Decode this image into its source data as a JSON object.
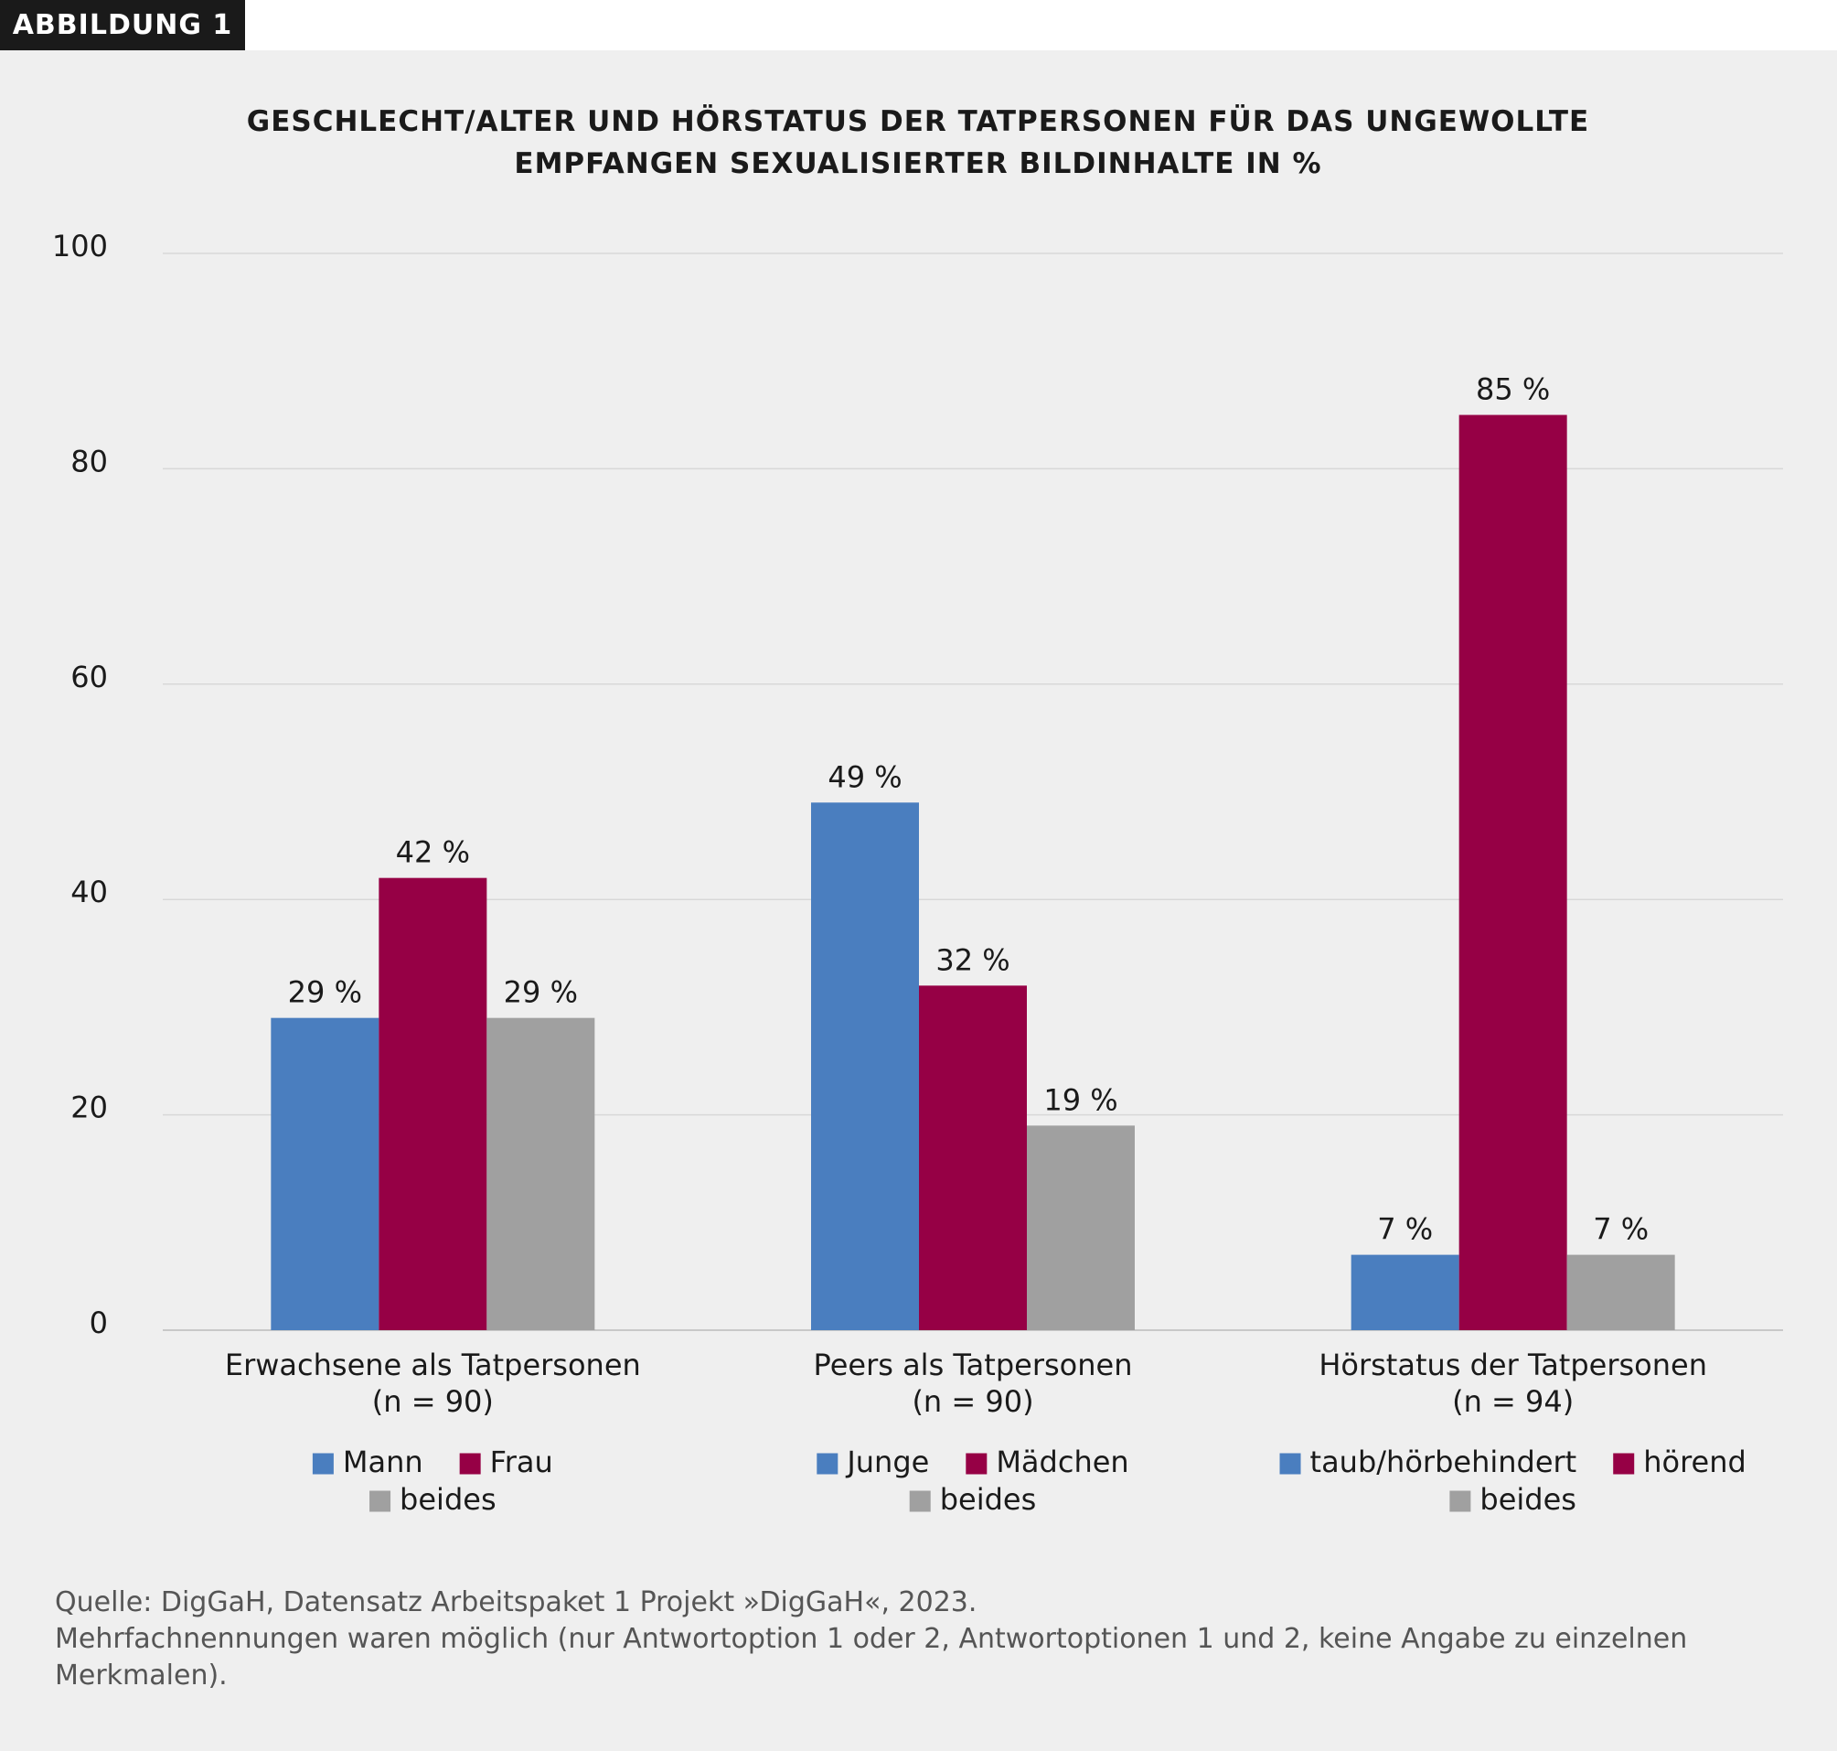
{
  "chart_data": {
    "type": "bar",
    "label": "ABBILDUNG 1",
    "title": "GESCHLECHT/ALTER UND HÖRSTATUS DER TATPERSONEN FÜR DAS UNGEWOLLTE EMPFANGEN SEXUALISIERTER BILDINHALTE IN %",
    "categories": [
      "Erwachsene als Tatpersonen",
      "Peers als Tatpersonen",
      "Hörstatus der Tatpersonen"
    ],
    "category_notes": [
      "(n = 90)",
      "(n = 90)",
      "(n = 94)"
    ],
    "series": [
      {
        "names": [
          "Mann",
          "Junge",
          "taub/hörbehindert"
        ],
        "color": "#4a7ebf",
        "values": [
          29,
          49,
          7
        ],
        "value_labels": [
          "29 %",
          "49 %",
          "7 %"
        ]
      },
      {
        "names": [
          "Frau",
          "Mädchen",
          "hörend"
        ],
        "color": "#960045",
        "values": [
          42,
          32,
          85
        ],
        "value_labels": [
          "42 %",
          "32 %",
          "85 %"
        ]
      },
      {
        "names": [
          "beides",
          "beides",
          "beides"
        ],
        "color": "#a0a0a0",
        "values": [
          29,
          19,
          7
        ],
        "value_labels": [
          "29 %",
          "19 %",
          "7 %"
        ]
      }
    ],
    "ylim": [
      0,
      100
    ],
    "yticks": [
      0,
      20,
      40,
      60,
      80,
      100
    ],
    "grid": true,
    "notes": [
      "Quelle: DigGaH, Datensatz Arbeitspaket 1 Projekt »DigGaH«, 2023.",
      "Mehrfachnennungen waren möglich (nur Antwortoption 1 oder 2, Antwortoptionen 1 und 2, keine Angabe zu einzelnen Merkmalen)."
    ]
  }
}
